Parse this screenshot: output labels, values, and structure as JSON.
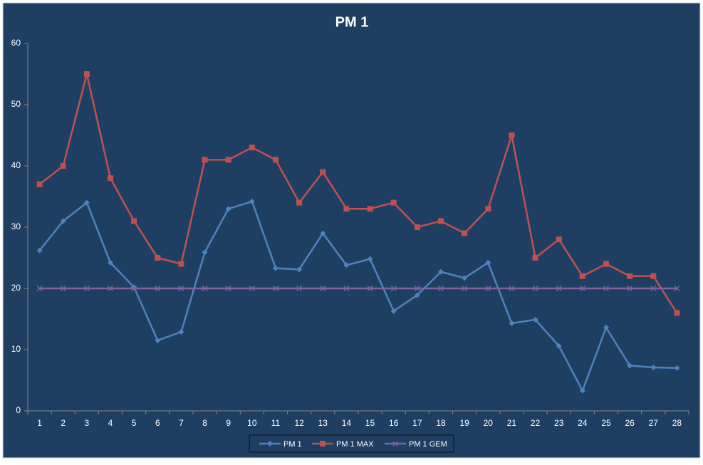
{
  "chart_data": {
    "type": "line",
    "title": "PM 1",
    "categories": [
      "1",
      "2",
      "3",
      "4",
      "5",
      "6",
      "7",
      "8",
      "9",
      "10",
      "11",
      "12",
      "13",
      "14",
      "15",
      "16",
      "17",
      "18",
      "19",
      "20",
      "21",
      "22",
      "23",
      "24",
      "25",
      "26",
      "27",
      "28"
    ],
    "series": [
      {
        "name": "PM 1",
        "color": "#4f81bd",
        "marker": "diamond",
        "values": [
          26.2,
          31,
          34,
          24.2,
          20.2,
          11.5,
          12.9,
          25.9,
          33,
          34.2,
          23.3,
          23.1,
          29,
          23.8,
          24.8,
          16.3,
          18.9,
          22.7,
          21.7,
          24.2,
          14.3,
          14.9,
          10.6,
          3.3,
          13.6,
          7.4,
          7.1,
          7.0
        ]
      },
      {
        "name": "PM 1 MAX",
        "color": "#c0504d",
        "marker": "square",
        "values": [
          37,
          40,
          55,
          38,
          31,
          25,
          24,
          41,
          41,
          43,
          41,
          34,
          39,
          33,
          33,
          34,
          30,
          31,
          29,
          33,
          45,
          25,
          28,
          22,
          24,
          22,
          22,
          16
        ]
      },
      {
        "name": "PM 1 GEM",
        "color": "#8064a2",
        "marker": "x",
        "values": [
          20,
          20,
          20,
          20,
          20,
          20,
          20,
          20,
          20,
          20,
          20,
          20,
          20,
          20,
          20,
          20,
          20,
          20,
          20,
          20,
          20,
          20,
          20,
          20,
          20,
          20,
          20,
          20
        ]
      }
    ],
    "ylim": [
      0,
      60
    ],
    "yticks": [
      0,
      10,
      20,
      30,
      40,
      50,
      60
    ],
    "legend": "bottom"
  }
}
